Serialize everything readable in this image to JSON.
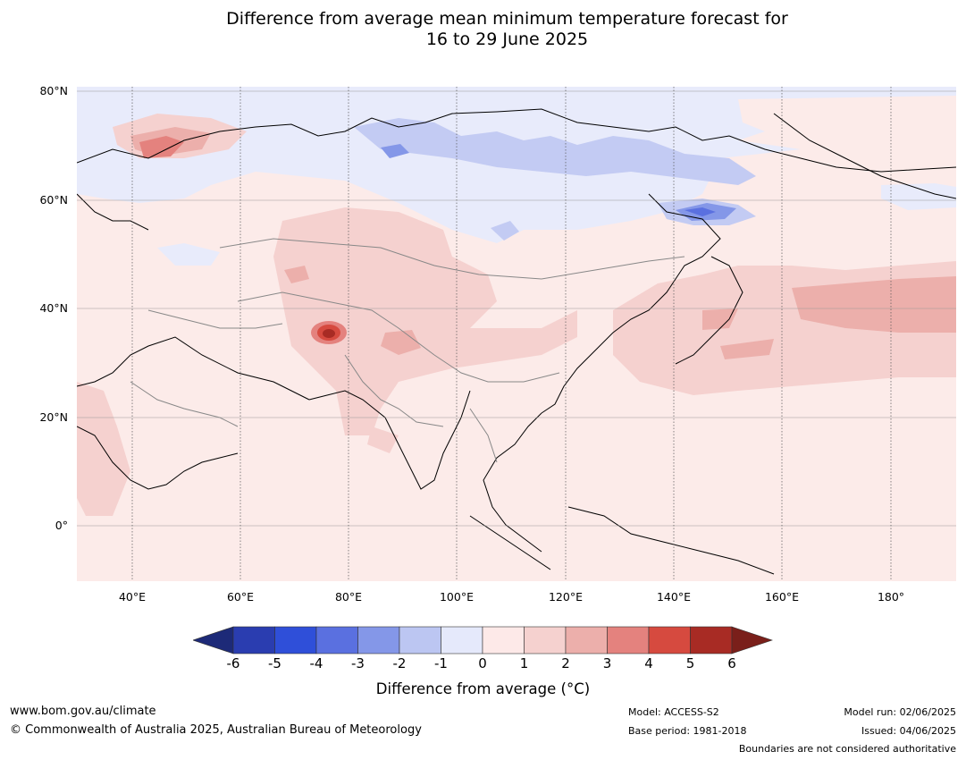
{
  "title": {
    "line1": "Difference from average mean minimum temperature forecast for",
    "line2": "16 to 29 June 2025"
  },
  "map": {
    "lat_labels": [
      "80°N",
      "60°N",
      "40°N",
      "20°N",
      "0°"
    ],
    "lon_labels": [
      "40°E",
      "60°E",
      "80°E",
      "100°E",
      "120°E",
      "140°E",
      "160°E",
      "180°"
    ]
  },
  "colorbar": {
    "ticks": [
      "-6",
      "-5",
      "-4",
      "-3",
      "-2",
      "-1",
      "0",
      "1",
      "2",
      "3",
      "4",
      "5",
      "6"
    ],
    "colors": [
      "#1d2a78",
      "#2a3db0",
      "#2f4fd9",
      "#5a70e0",
      "#8497e8",
      "#bcc6f2",
      "#e5e9fb",
      "#fde9e8",
      "#f5d1cf",
      "#ecafab",
      "#e4827e",
      "#d64a3f",
      "#a82b24",
      "#7a1f1a"
    ],
    "label": "Difference from average (°C)"
  },
  "footer": {
    "website": "www.bom.gov.au/climate",
    "copyright": "© Commonwealth of Australia 2025, Australian Bureau of Meteorology",
    "model": "Model: ACCESS-S2",
    "base_period": "Base period: 1981-2018",
    "model_run": "Model run: 02/06/2025",
    "issued": "Issued: 04/06/2025",
    "disclaimer": "Boundaries are not considered authoritative"
  }
}
